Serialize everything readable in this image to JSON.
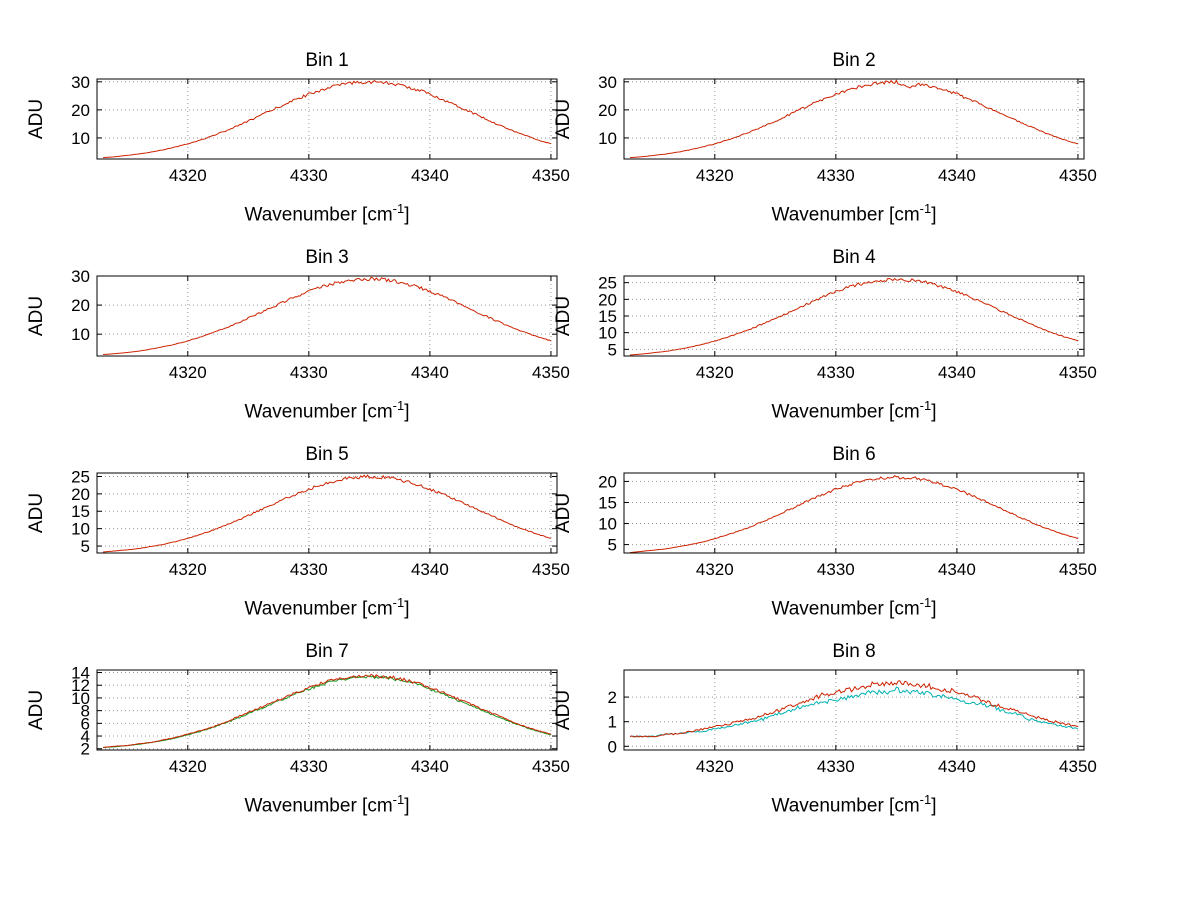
{
  "figure": {
    "background": "#ffffff",
    "axis_color": "#000000",
    "grid_color": "#999999",
    "ylabel": "ADU",
    "xlabel": {
      "main": "Wavenumber [cm",
      "sup": "-1",
      "close": "]"
    }
  },
  "x_values": [
    4313,
    4314,
    4315,
    4316,
    4317,
    4318,
    4319,
    4320,
    4321,
    4322,
    4323,
    4324,
    4325,
    4326,
    4327,
    4328,
    4329,
    4330,
    4331,
    4332,
    4333,
    4334,
    4335,
    4336,
    4337,
    4338,
    4339,
    4340,
    4341,
    4342,
    4343,
    4344,
    4345,
    4346,
    4347,
    4348,
    4349,
    4350
  ],
  "chart_data": [
    {
      "type": "line",
      "title": "Bin 1",
      "xlabel": "Wavenumber [cm^-1]",
      "ylabel": "ADU",
      "xlim": [
        4312.5,
        4350.5
      ],
      "ylim": [
        2.5,
        31
      ],
      "grid": true,
      "legend": "none",
      "xticks": [
        4320,
        4330,
        4340,
        4350
      ],
      "yticks": [
        10,
        20,
        30
      ],
      "series": [
        {
          "name": "line-1",
          "color": "#cc2200",
          "y": [
            3.0,
            3.3,
            3.8,
            4.3,
            5.0,
            5.8,
            6.8,
            7.9,
            9.2,
            10.7,
            12.3,
            14.1,
            16.0,
            18.0,
            20.0,
            22.0,
            23.8,
            25.6,
            27.1,
            28.3,
            29.2,
            29.8,
            30.0,
            29.8,
            29.2,
            28.3,
            27.1,
            25.6,
            23.8,
            22.0,
            20.0,
            18.0,
            16.0,
            14.1,
            12.3,
            10.7,
            9.2,
            7.9
          ]
        }
      ]
    },
    {
      "type": "line",
      "title": "Bin 2",
      "xlabel": "Wavenumber [cm^-1]",
      "ylabel": "ADU",
      "xlim": [
        4312.5,
        4350.5
      ],
      "ylim": [
        2.5,
        31
      ],
      "grid": true,
      "legend": "none",
      "xticks": [
        4320,
        4330,
        4340,
        4350
      ],
      "yticks": [
        10,
        20,
        30
      ],
      "series": [
        {
          "name": "line-1",
          "color": "#cc2200",
          "y": [
            3.0,
            3.3,
            3.8,
            4.3,
            5.0,
            5.8,
            6.8,
            7.9,
            9.2,
            10.7,
            12.3,
            14.1,
            16.0,
            18.0,
            20.0,
            22.0,
            23.8,
            25.6,
            27.1,
            28.3,
            29.2,
            29.8,
            30.0,
            27.8,
            29.2,
            28.3,
            27.1,
            25.6,
            23.8,
            22.0,
            20.0,
            18.0,
            16.0,
            14.1,
            12.3,
            10.7,
            9.2,
            7.9
          ]
        }
      ]
    },
    {
      "type": "line",
      "title": "Bin 3",
      "xlabel": "Wavenumber [cm^-1]",
      "ylabel": "ADU",
      "xlim": [
        4312.5,
        4350.5
      ],
      "ylim": [
        2.5,
        30
      ],
      "grid": true,
      "legend": "none",
      "xticks": [
        4320,
        4330,
        4340,
        4350
      ],
      "yticks": [
        10,
        20,
        30
      ],
      "series": [
        {
          "name": "line-1",
          "color": "#cc2200",
          "y": [
            3.0,
            3.3,
            3.7,
            4.2,
            4.9,
            5.7,
            6.6,
            7.7,
            9.0,
            10.4,
            12.0,
            13.7,
            15.5,
            17.4,
            19.3,
            21.2,
            23.1,
            24.7,
            26.2,
            27.4,
            28.3,
            28.8,
            29.0,
            28.8,
            28.3,
            27.4,
            26.2,
            24.7,
            23.1,
            21.2,
            19.3,
            17.4,
            15.5,
            13.7,
            12.0,
            10.4,
            9.0,
            7.7
          ]
        }
      ]
    },
    {
      "type": "line",
      "title": "Bin 4",
      "xlabel": "Wavenumber [cm^-1]",
      "ylabel": "ADU",
      "xlim": [
        4312.5,
        4350.5
      ],
      "ylim": [
        3,
        27
      ],
      "grid": true,
      "legend": "none",
      "xticks": [
        4320,
        4330,
        4340,
        4350
      ],
      "yticks": [
        5,
        10,
        15,
        20,
        25
      ],
      "series": [
        {
          "name": "line-1",
          "color": "#cc2200",
          "y": [
            3.3,
            3.6,
            4.0,
            4.4,
            5.0,
            5.7,
            6.5,
            7.5,
            8.6,
            9.8,
            11.2,
            12.7,
            14.3,
            15.9,
            17.6,
            19.2,
            20.8,
            22.3,
            23.5,
            24.6,
            25.4,
            25.8,
            26.0,
            25.8,
            25.4,
            24.6,
            23.5,
            22.3,
            20.8,
            19.2,
            17.6,
            15.9,
            14.3,
            12.7,
            11.2,
            9.8,
            8.6,
            7.5
          ]
        }
      ]
    },
    {
      "type": "line",
      "title": "Bin 5",
      "xlabel": "Wavenumber [cm^-1]",
      "ylabel": "ADU",
      "xlim": [
        4312.5,
        4350.5
      ],
      "ylim": [
        3,
        26
      ],
      "grid": true,
      "legend": "none",
      "xticks": [
        4320,
        4330,
        4340,
        4350
      ],
      "yticks": [
        5,
        10,
        15,
        20,
        25
      ],
      "series": [
        {
          "name": "line-1",
          "color": "#cc2200",
          "y": [
            3.3,
            3.6,
            3.9,
            4.3,
            4.9,
            5.5,
            6.3,
            7.2,
            8.3,
            9.5,
            10.8,
            12.2,
            13.8,
            15.3,
            16.9,
            18.5,
            20.0,
            21.4,
            22.6,
            23.6,
            24.4,
            24.8,
            25.0,
            24.8,
            24.4,
            23.6,
            22.6,
            21.4,
            20.0,
            18.5,
            16.9,
            15.3,
            13.8,
            12.2,
            10.8,
            9.5,
            8.3,
            7.2
          ]
        }
      ]
    },
    {
      "type": "line",
      "title": "Bin 6",
      "xlabel": "Wavenumber [cm^-1]",
      "ylabel": "ADU",
      "xlim": [
        4312.5,
        4350.5
      ],
      "ylim": [
        3,
        22
      ],
      "grid": true,
      "legend": "none",
      "xticks": [
        4320,
        4330,
        4340,
        4350
      ],
      "yticks": [
        5,
        10,
        15,
        20
      ],
      "series": [
        {
          "name": "line-1",
          "color": "#cc2200",
          "y": [
            3.1,
            3.4,
            3.7,
            4.0,
            4.5,
            5.0,
            5.6,
            6.4,
            7.3,
            8.2,
            9.3,
            10.5,
            11.8,
            13.1,
            14.4,
            15.7,
            16.9,
            18.1,
            19.1,
            19.9,
            20.5,
            20.9,
            21.0,
            20.9,
            20.5,
            19.9,
            19.1,
            18.1,
            16.9,
            15.7,
            14.4,
            13.1,
            11.8,
            10.5,
            9.3,
            8.2,
            7.3,
            6.4
          ]
        }
      ]
    },
    {
      "type": "line",
      "title": "Bin 7",
      "xlabel": "Wavenumber [cm^-1]",
      "ylabel": "ADU",
      "xlim": [
        4312.5,
        4350.5
      ],
      "ylim": [
        1.8,
        14.4
      ],
      "grid": true,
      "legend": "none",
      "xticks": [
        4320,
        4330,
        4340,
        4350
      ],
      "yticks": [
        2,
        4,
        6,
        8,
        10,
        12,
        14
      ],
      "series": [
        {
          "name": "line-2",
          "color": "#1a9922",
          "y": [
            2.2,
            2.3,
            2.5,
            2.7,
            3.0,
            3.3,
            3.7,
            4.2,
            4.7,
            5.3,
            6.0,
            6.7,
            7.5,
            8.3,
            9.1,
            9.9,
            10.7,
            11.4,
            12.1,
            12.6,
            13.0,
            13.2,
            13.3,
            13.2,
            13.0,
            12.6,
            12.1,
            11.4,
            10.7,
            9.9,
            9.1,
            8.3,
            7.5,
            6.7,
            6.0,
            5.3,
            4.7,
            4.2
          ]
        },
        {
          "name": "line-1",
          "color": "#cc2200",
          "y": [
            2.2,
            2.4,
            2.5,
            2.8,
            3.0,
            3.4,
            3.8,
            4.3,
            4.8,
            5.4,
            6.1,
            6.9,
            7.7,
            8.5,
            9.3,
            10.1,
            10.9,
            11.6,
            12.3,
            12.8,
            13.2,
            13.4,
            13.5,
            13.4,
            13.2,
            12.8,
            12.3,
            11.6,
            10.9,
            10.1,
            9.3,
            8.5,
            7.7,
            6.9,
            6.1,
            5.4,
            4.8,
            4.3
          ]
        }
      ]
    },
    {
      "type": "line",
      "title": "Bin 8",
      "xlabel": "Wavenumber [cm^-1]",
      "ylabel": "ADU",
      "xlim": [
        4312.5,
        4350.5
      ],
      "ylim": [
        -0.15,
        3.1
      ],
      "grid": true,
      "legend": "none",
      "xticks": [
        4320,
        4330,
        4340,
        4350
      ],
      "yticks": [
        0,
        1,
        2
      ],
      "series": [
        {
          "name": "line-2",
          "color": "#00b2b2",
          "y": [
            0.4,
            0.4,
            0.4,
            0.5,
            0.5,
            0.6,
            0.6,
            0.7,
            0.8,
            0.9,
            1.0,
            1.1,
            1.3,
            1.4,
            1.6,
            1.7,
            1.8,
            1.9,
            2.0,
            2.1,
            2.2,
            2.2,
            2.3,
            2.2,
            2.2,
            2.1,
            2.0,
            1.9,
            1.8,
            1.7,
            1.6,
            1.4,
            1.3,
            1.1,
            1.0,
            0.9,
            0.8,
            0.7
          ]
        },
        {
          "name": "line-1",
          "color": "#cc2200",
          "y": [
            0.4,
            0.4,
            0.4,
            0.5,
            0.5,
            0.6,
            0.7,
            0.8,
            0.9,
            1.0,
            1.1,
            1.3,
            1.4,
            1.6,
            1.7,
            1.9,
            2.1,
            2.2,
            2.3,
            2.4,
            2.5,
            2.5,
            2.6,
            2.5,
            2.5,
            2.4,
            2.3,
            2.2,
            2.1,
            1.9,
            1.7,
            1.6,
            1.4,
            1.3,
            1.1,
            1.0,
            0.9,
            0.8
          ]
        }
      ]
    }
  ]
}
